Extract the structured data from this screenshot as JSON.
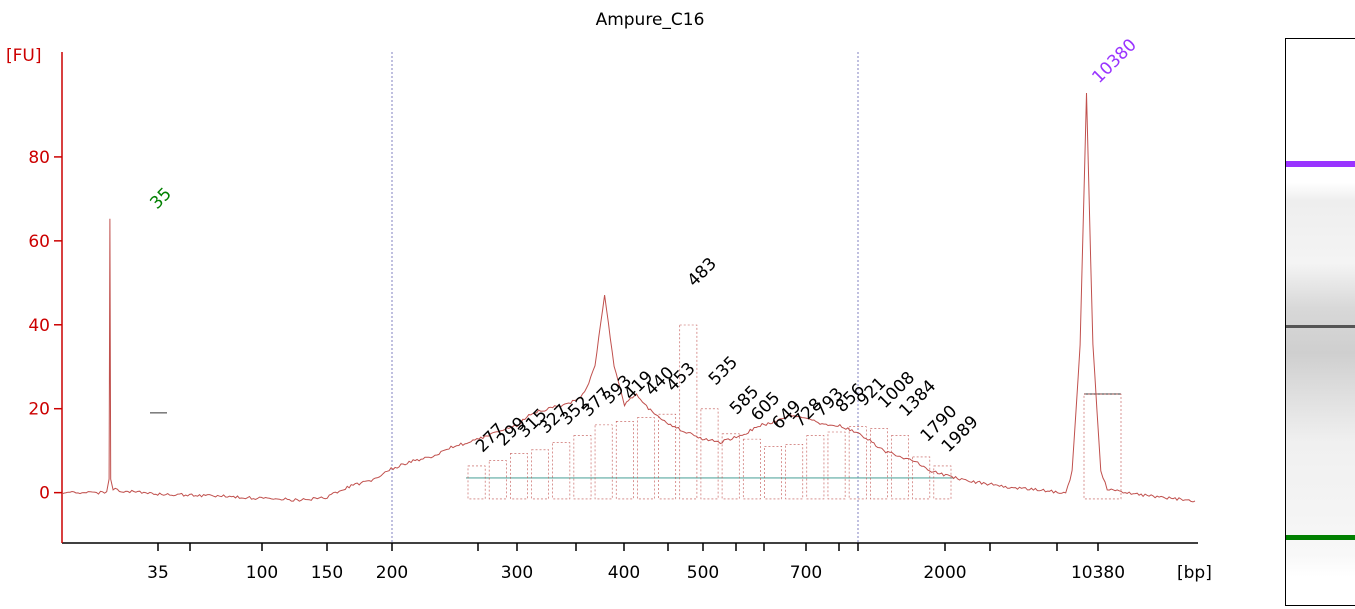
{
  "chart_data": {
    "type": "line",
    "title": "Ampure_C16",
    "ylabel": "[FU]",
    "xlabel": "[bp]",
    "ylim": [
      -12,
      105
    ],
    "yticks": [
      0,
      20,
      40,
      60,
      80
    ],
    "x_scale": "ladder (non-linear)",
    "xtick_labels": [
      "35",
      "",
      "100",
      "150",
      "200",
      "",
      "300",
      "",
      "400",
      "",
      "500",
      "",
      "",
      "700",
      "",
      "",
      "2000",
      "",
      "",
      "10380"
    ],
    "colors": {
      "trace": "#c0504d",
      "axis": "#cc0000",
      "lower_marker": "#008000",
      "upper_marker": "#9933ff",
      "baseline": "#5aa9a0",
      "separator": "#8080c0"
    },
    "markers": [
      {
        "label": "35",
        "x": 35,
        "y": 65,
        "color": "#008000"
      },
      {
        "label": "10380",
        "x": 10380,
        "y": 95,
        "color": "#9933ff"
      }
    ],
    "peaks": [
      {
        "label": "277",
        "y": 7.5
      },
      {
        "label": "299",
        "y": 9
      },
      {
        "label": "315",
        "y": 11
      },
      {
        "label": "327",
        "y": 12
      },
      {
        "label": "352",
        "y": 14
      },
      {
        "label": "377",
        "y": 16
      },
      {
        "label": "393",
        "y": 19
      },
      {
        "label": "419",
        "y": 20
      },
      {
        "label": "440",
        "y": 21
      },
      {
        "label": "453",
        "y": 22
      },
      {
        "label": "483",
        "y": 47
      },
      {
        "label": "535",
        "y": 23.5
      },
      {
        "label": "585",
        "y": 16.5
      },
      {
        "label": "605",
        "y": 15
      },
      {
        "label": "649",
        "y": 13
      },
      {
        "label": "728",
        "y": 13.5
      },
      {
        "label": "793",
        "y": 16
      },
      {
        "label": "856",
        "y": 17
      },
      {
        "label": "921",
        "y": 18.5
      },
      {
        "label": "1008",
        "y": 18
      },
      {
        "label": "1384",
        "y": 16
      },
      {
        "label": "1790",
        "y": 10
      },
      {
        "label": "1989",
        "y": 7.5
      }
    ],
    "profile": [
      [
        0,
        0
      ],
      [
        0.2,
        0
      ],
      [
        0.56,
        0
      ],
      [
        0.59,
        3
      ],
      [
        0.6,
        65
      ],
      [
        0.61,
        3
      ],
      [
        0.64,
        0.8
      ],
      [
        0.8,
        0.3
      ],
      [
        1.2,
        -0.3
      ],
      [
        2.0,
        -0.8
      ],
      [
        2.3,
        -1.2
      ],
      [
        2.7,
        -1.5
      ],
      [
        3.0,
        -1.8
      ],
      [
        3.3,
        -1.2
      ],
      [
        3.6,
        1.5
      ],
      [
        3.9,
        3
      ],
      [
        4.1,
        5.5
      ],
      [
        4.4,
        7.5
      ],
      [
        4.7,
        9
      ],
      [
        4.9,
        11
      ],
      [
        5.1,
        12
      ],
      [
        5.4,
        14
      ],
      [
        5.7,
        16
      ],
      [
        5.9,
        19
      ],
      [
        6.1,
        20
      ],
      [
        6.3,
        21
      ],
      [
        6.45,
        22
      ],
      [
        6.55,
        24
      ],
      [
        6.68,
        30
      ],
      [
        6.8,
        47
      ],
      [
        6.92,
        30
      ],
      [
        7.05,
        21
      ],
      [
        7.2,
        23.5
      ],
      [
        7.4,
        19
      ],
      [
        7.6,
        16.5
      ],
      [
        7.75,
        15
      ],
      [
        8.0,
        13
      ],
      [
        8.25,
        12
      ],
      [
        8.5,
        13.5
      ],
      [
        8.75,
        16
      ],
      [
        8.95,
        17
      ],
      [
        9.1,
        18.5
      ],
      [
        9.3,
        18
      ],
      [
        9.55,
        16
      ],
      [
        9.75,
        16
      ],
      [
        10.0,
        14
      ],
      [
        10.3,
        10
      ],
      [
        10.5,
        8.5
      ],
      [
        10.7,
        7.5
      ],
      [
        10.9,
        5
      ],
      [
        11.3,
        3
      ],
      [
        11.8,
        1.5
      ],
      [
        12.3,
        0.5
      ],
      [
        12.58,
        0
      ],
      [
        12.66,
        5
      ],
      [
        12.76,
        35
      ],
      [
        12.84,
        95
      ],
      [
        12.92,
        35
      ],
      [
        13.02,
        5
      ],
      [
        13.1,
        1
      ],
      [
        13.5,
        -0.5
      ],
      [
        14.0,
        -1.5
      ],
      [
        14.2,
        -2
      ]
    ]
  }
}
